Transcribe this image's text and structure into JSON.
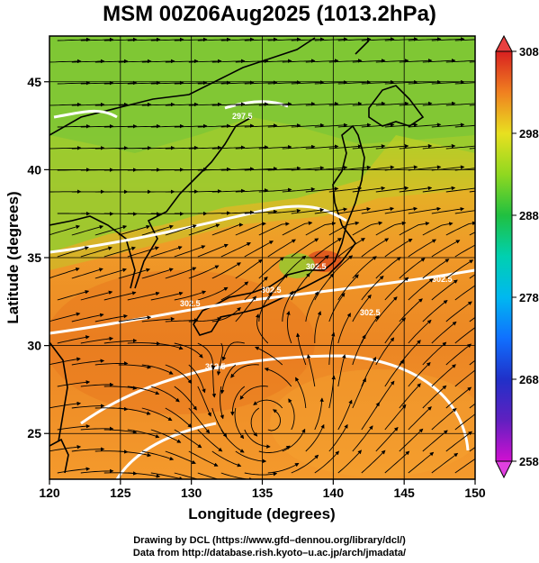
{
  "title": "MSM 00Z06Aug2025 (1013.2hPa)",
  "axes": {
    "xlabel": "Longitude (degrees)",
    "ylabel": "Latitude  (degrees)",
    "x_ticks": [
      "120",
      "125",
      "130",
      "135",
      "140",
      "145",
      "150"
    ],
    "y_ticks": [
      "25",
      "30",
      "35",
      "40",
      "45"
    ],
    "x_range": [
      120,
      150
    ],
    "y_range": [
      22.4,
      47.6
    ],
    "grid": true
  },
  "colorbar": {
    "min": 258,
    "max": 308,
    "tick_labels": [
      "308",
      "298",
      "288",
      "278",
      "268",
      "258"
    ],
    "palette": [
      "#d010d0",
      "#3030c0",
      "#1060ff",
      "#00b0f0",
      "#00d0c0",
      "#20c040",
      "#80d020",
      "#e0e020",
      "#f0a020",
      "#e05020",
      "#d02020"
    ]
  },
  "contour_labels": [
    "302.5",
    "302.5",
    "297.5",
    "302.5",
    "302.5",
    "302.5",
    "302.5"
  ],
  "credits": {
    "line1": "Drawing by DCL (https://www.gfd–dennou.org/library/dcl/)",
    "line2": "Data from http://database.rish.kyoto–u.ac.jp/arch/jmadata/"
  },
  "colors": {
    "land_cool": "#7cc832",
    "warm": "#f09028",
    "hot": "#e8701a"
  }
}
